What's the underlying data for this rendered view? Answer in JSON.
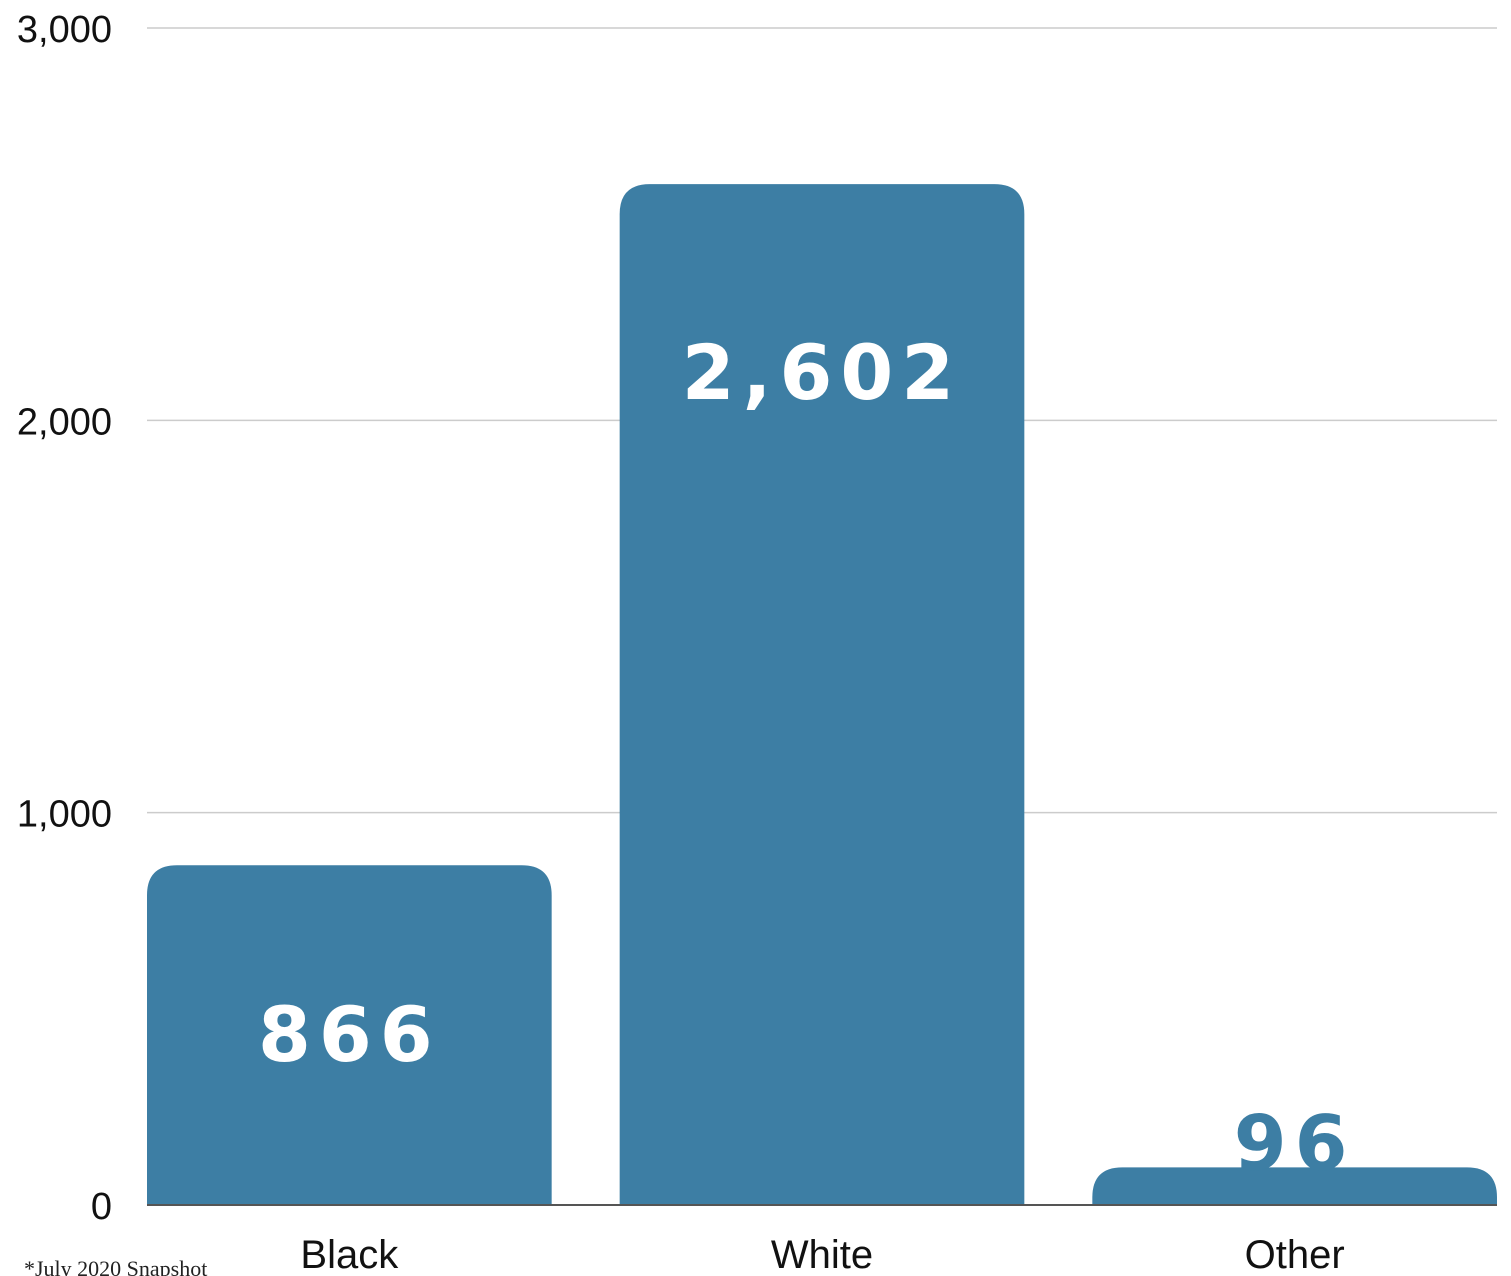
{
  "chart_data": {
    "type": "bar",
    "categories": [
      "Black",
      "White",
      "Other"
    ],
    "values": [
      866,
      2602,
      96
    ],
    "data_labels": [
      "866",
      "2,602",
      "96"
    ],
    "yticks": [
      0,
      1000,
      2000,
      3000
    ],
    "ytick_labels": [
      "0",
      "1,000",
      "2,000",
      "3,000"
    ],
    "ylim": [
      0,
      3000
    ],
    "grid": true,
    "legend": "none",
    "title": "",
    "xlabel": "",
    "ylabel": ""
  },
  "footnote": "*July 2020 Snapshot",
  "colors": {
    "bar": "#3d7ea4",
    "label_inside": "#ffffff",
    "label_outside": "#3d7ea4",
    "grid": "#cccccc",
    "axis": "#555555"
  }
}
